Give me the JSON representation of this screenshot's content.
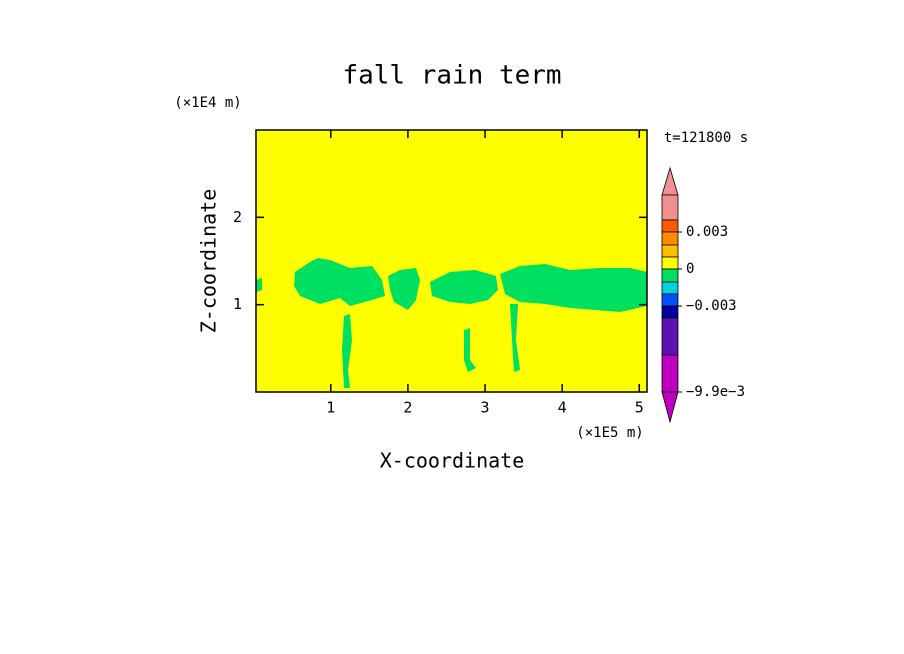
{
  "chart_data": {
    "type": "contour",
    "title": "fall rain term",
    "x_label": "X-coordinate",
    "y_label": "Z-coordinate",
    "x_unit": "(×1E5 m)",
    "y_unit": "(×1E4 m)",
    "time_label": "t=121800 s",
    "xlim": [
      0.03,
      5.1
    ],
    "xticks": [
      1,
      2,
      3,
      4,
      5
    ],
    "ylim": [
      0,
      3
    ],
    "yticks": [
      1,
      2
    ],
    "background_color": "#ffff00",
    "field_color": "#00e060",
    "colorbar": {
      "colors": [
        "#f09090",
        "#f09090",
        "#ff5a00",
        "#ff8c00",
        "#ffc000",
        "#ffff00",
        "#00e060",
        "#00d0e0",
        "#0050ff",
        "#0000a0",
        "#6010b0",
        "#c000c0",
        "#c000c0"
      ],
      "ticks": [
        {
          "value": 0.003,
          "label": "0.003"
        },
        0,
        {
          "value": -0.003,
          "label": "−0.003"
        },
        {
          "value": -0.0099,
          "label": "−9.9e−3"
        }
      ]
    }
  }
}
